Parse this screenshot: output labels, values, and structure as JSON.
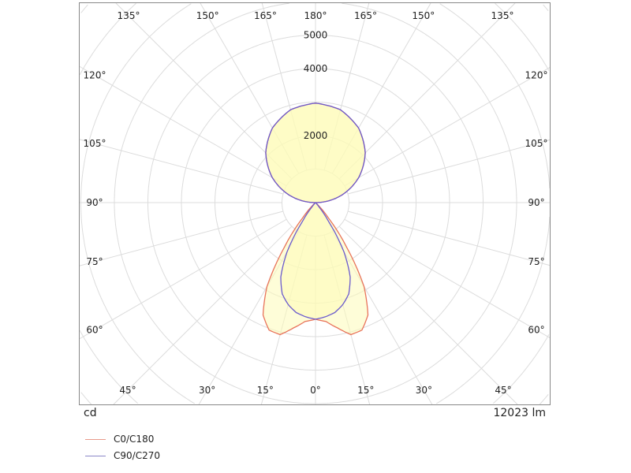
{
  "chart_data": {
    "type": "polar",
    "unit_label": "cd",
    "flux_label": "12023 lm",
    "radial_ticks": [
      1000,
      2000,
      3000,
      4000,
      5000
    ],
    "radial_tick_labels": [
      "2000",
      "4000",
      "5000"
    ],
    "radial_labeled_values": [
      2000,
      4000,
      5000
    ],
    "angle_step": 15,
    "grid": true,
    "legend_placement": "bottom-left",
    "series": [
      {
        "name": "C0/C180",
        "color": "#e8735a",
        "angles": [
          0,
          5,
          10,
          15,
          20,
          25,
          30,
          35,
          40,
          45,
          50,
          90,
          105,
          120,
          135,
          150,
          165,
          180
        ],
        "values": [
          3480,
          3560,
          3800,
          4080,
          4050,
          3700,
          2900,
          1600,
          600,
          150,
          0,
          0,
          770,
          1485,
          2100,
          2570,
          2870,
          2970
        ]
      },
      {
        "name": "C90/C270",
        "color": "#6a5acd",
        "angles": [
          0,
          5,
          10,
          15,
          20,
          25,
          30,
          35,
          40,
          45,
          90,
          105,
          120,
          135,
          150,
          165,
          180
        ],
        "values": [
          3480,
          3420,
          3330,
          3150,
          2900,
          2450,
          1700,
          650,
          120,
          0,
          0,
          770,
          1485,
          2100,
          2570,
          2870,
          2970
        ]
      }
    ],
    "fill_color": "#fdfbb8"
  }
}
